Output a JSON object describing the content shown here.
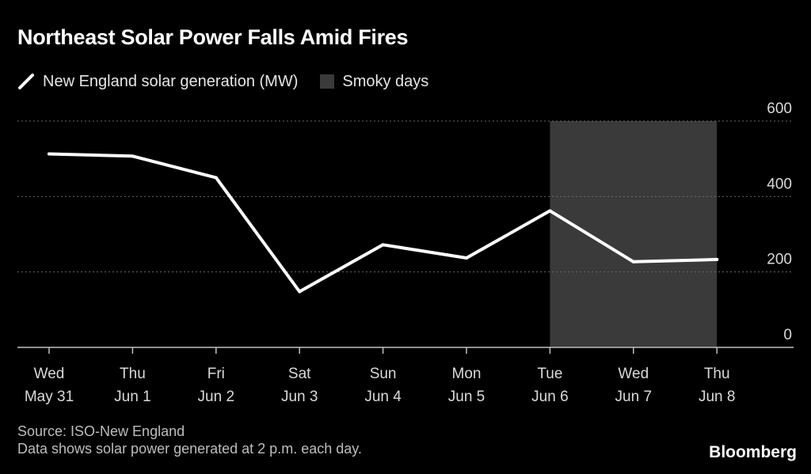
{
  "chart_data": {
    "type": "line",
    "title": "Northeast Solar Power Falls Amid Fires",
    "legend": {
      "series_label": "New England solar generation (MW)",
      "band_label": "Smoky days",
      "placement": "top-left"
    },
    "categories": [
      [
        "Wed",
        "May 31"
      ],
      [
        "Thu",
        "Jun 1"
      ],
      [
        "Fri",
        "Jun 2"
      ],
      [
        "Sat",
        "Jun 3"
      ],
      [
        "Sun",
        "Jun 4"
      ],
      [
        "Mon",
        "Jun 5"
      ],
      [
        "Tue",
        "Jun 6"
      ],
      [
        "Wed",
        "Jun 7"
      ],
      [
        "Thu",
        "Jun 8"
      ]
    ],
    "series": [
      {
        "name": "New England solar generation (MW)",
        "values": [
          513,
          507,
          450,
          148,
          272,
          237,
          362,
          227,
          233
        ],
        "color": "#ffffff"
      }
    ],
    "smoky_band": {
      "from_index": 6,
      "to_index": 8,
      "color": "#3a3a3a"
    },
    "ylim": [
      0,
      600
    ],
    "yticks": [
      "0",
      "200",
      "400",
      "600"
    ],
    "ytick_values": [
      0,
      200,
      400,
      600
    ],
    "grid": true,
    "y_axis_position": "right",
    "source": "Source: ISO-New England",
    "note": "Data shows solar power generated at 2 p.m. each day.",
    "brand": "Bloomberg"
  }
}
